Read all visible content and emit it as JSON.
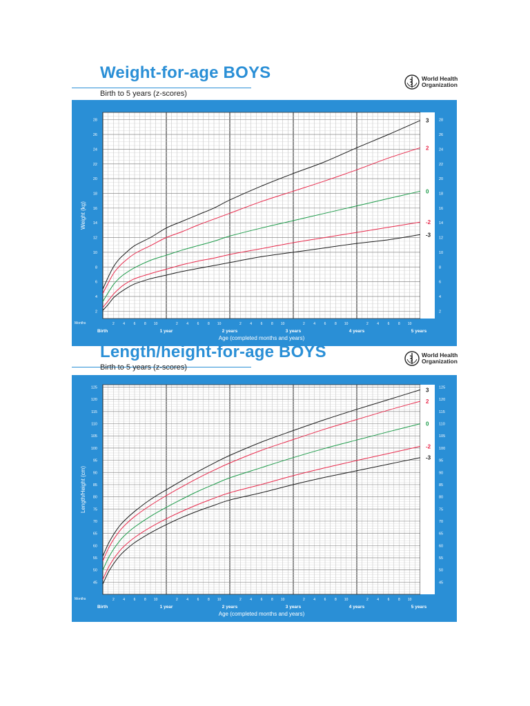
{
  "organization": {
    "name_line1": "World Health",
    "name_line2": "Organization",
    "logo_icon": "who-emblem-icon"
  },
  "colors": {
    "accent": "#2a8fd6",
    "z3": "#1a1a1a",
    "z2": "#e8284a",
    "z0": "#1b9a48",
    "zm2": "#e8284a",
    "zm3": "#1a1a1a"
  },
  "chart_data": [
    {
      "type": "line",
      "title": "Weight-for-age BOYS",
      "subtitle": "Birth to 5 years (z-scores)",
      "xlabel": "Age (completed months and years)",
      "ylabel": "Weight (kg)",
      "months_label": "Months",
      "xlim": [
        0,
        60
      ],
      "ylim": [
        1,
        29
      ],
      "y_ticks": [
        2,
        4,
        6,
        8,
        10,
        12,
        14,
        16,
        18,
        20,
        22,
        24,
        26,
        28
      ],
      "year_labels": [
        {
          "month": 0,
          "label": "Birth"
        },
        {
          "month": 12,
          "label": "1 year"
        },
        {
          "month": 24,
          "label": "2 years"
        },
        {
          "month": 36,
          "label": "3 years"
        },
        {
          "month": 48,
          "label": "4 years"
        },
        {
          "month": 60,
          "label": "5 years"
        }
      ],
      "month_ticks": [
        2,
        4,
        6,
        8,
        10
      ],
      "grid": true,
      "x": [
        0,
        1,
        2,
        3,
        4,
        6,
        9,
        12,
        15,
        18,
        21,
        24,
        30,
        36,
        42,
        48,
        54,
        60
      ],
      "series": [
        {
          "name": "3",
          "values": [
            5.0,
            6.6,
            8.0,
            9.0,
            9.7,
            10.9,
            12.0,
            13.3,
            14.2,
            15.1,
            16.0,
            17.1,
            19.0,
            20.7,
            22.3,
            24.2,
            26.0,
            27.9
          ]
        },
        {
          "name": "2",
          "values": [
            4.4,
            5.8,
            7.1,
            8.0,
            8.7,
            9.8,
            10.9,
            12.0,
            12.8,
            13.7,
            14.5,
            15.3,
            16.9,
            18.3,
            19.7,
            21.2,
            22.8,
            24.2
          ]
        },
        {
          "name": "0",
          "values": [
            3.3,
            4.5,
            5.6,
            6.4,
            7.0,
            7.9,
            8.9,
            9.6,
            10.3,
            10.9,
            11.5,
            12.2,
            13.3,
            14.3,
            15.3,
            16.3,
            17.3,
            18.3
          ]
        },
        {
          "name": "-2",
          "values": [
            2.5,
            3.4,
            4.3,
            5.0,
            5.6,
            6.4,
            7.1,
            7.7,
            8.3,
            8.8,
            9.2,
            9.7,
            10.5,
            11.3,
            12.0,
            12.7,
            13.4,
            14.1
          ]
        },
        {
          "name": "-3",
          "values": [
            2.1,
            2.9,
            3.8,
            4.4,
            4.9,
            5.7,
            6.4,
            6.9,
            7.4,
            7.8,
            8.2,
            8.6,
            9.4,
            10.0,
            10.6,
            11.2,
            11.7,
            12.4
          ]
        }
      ]
    },
    {
      "type": "line",
      "title": "Length/height-for-age BOYS",
      "subtitle": "Birth to 5 years (z-scores)",
      "xlabel": "Age (completed months and years)",
      "ylabel": "Length/Height (cm)",
      "months_label": "Months",
      "xlim": [
        0,
        60
      ],
      "ylim": [
        40,
        126
      ],
      "y_ticks": [
        45,
        50,
        55,
        60,
        65,
        70,
        75,
        80,
        85,
        90,
        95,
        100,
        105,
        110,
        115,
        120,
        125
      ],
      "year_labels": [
        {
          "month": 0,
          "label": "Birth"
        },
        {
          "month": 12,
          "label": "1 year"
        },
        {
          "month": 24,
          "label": "2 years"
        },
        {
          "month": 36,
          "label": "3 years"
        },
        {
          "month": 48,
          "label": "4 years"
        },
        {
          "month": 60,
          "label": "5 years"
        }
      ],
      "month_ticks": [
        2,
        4,
        6,
        8,
        10
      ],
      "grid": true,
      "x": [
        0,
        1,
        2,
        3,
        4,
        6,
        9,
        12,
        15,
        18,
        21,
        24,
        30,
        36,
        42,
        48,
        54,
        60
      ],
      "series": [
        {
          "name": "3",
          "values": [
            55.6,
            60.6,
            64.4,
            67.6,
            70.1,
            74.0,
            78.9,
            82.9,
            86.7,
            90.4,
            93.8,
            97.0,
            102.5,
            107.2,
            111.7,
            115.9,
            119.9,
            123.9
          ]
        },
        {
          "name": "2",
          "values": [
            53.7,
            58.6,
            62.4,
            65.5,
            68.0,
            71.9,
            76.5,
            80.5,
            84.2,
            87.7,
            90.9,
            93.9,
            99.1,
            103.5,
            107.8,
            111.7,
            115.6,
            119.2
          ]
        },
        {
          "name": "0",
          "values": [
            49.9,
            54.7,
            58.4,
            61.4,
            63.9,
            67.6,
            72.0,
            75.7,
            79.1,
            82.3,
            85.1,
            87.8,
            92.0,
            96.1,
            99.9,
            103.3,
            106.7,
            110.0
          ]
        },
        {
          "name": "-2",
          "values": [
            46.1,
            50.8,
            54.4,
            57.3,
            59.7,
            63.3,
            67.5,
            71.0,
            74.1,
            76.9,
            79.4,
            81.7,
            85.1,
            88.7,
            91.9,
            94.9,
            97.8,
            100.7
          ]
        },
        {
          "name": "-3",
          "values": [
            44.2,
            48.9,
            52.4,
            55.3,
            57.6,
            61.2,
            65.2,
            68.6,
            71.6,
            74.2,
            76.5,
            78.7,
            81.7,
            85.0,
            88.0,
            90.7,
            93.4,
            96.1
          ]
        }
      ]
    }
  ]
}
